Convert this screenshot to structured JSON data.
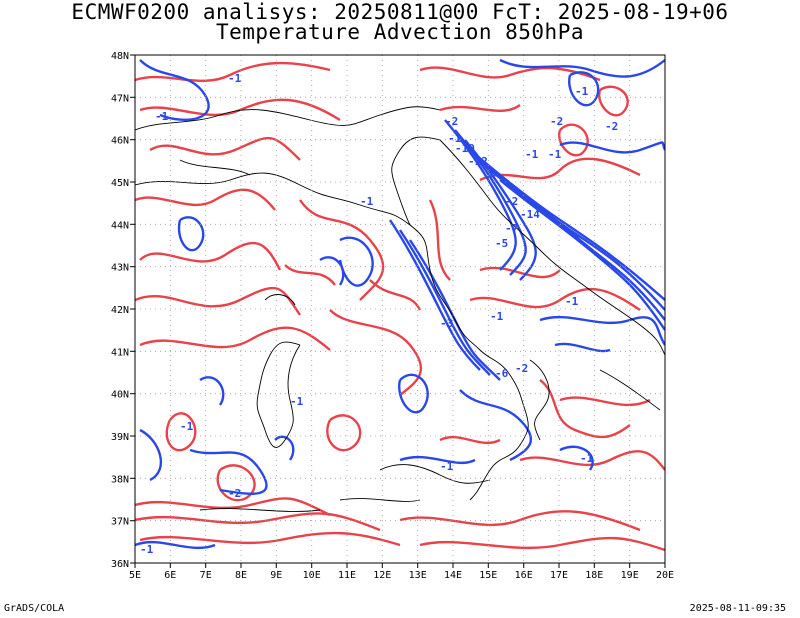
{
  "header": {
    "title_line1": "ECMWF0200 analisys: 20250811@00 FcT: 2025-08-19+06",
    "title_line2": "Temperature Advection 850hPa"
  },
  "map": {
    "lon_labels": [
      "5E",
      "6E",
      "7E",
      "8E",
      "9E",
      "10E",
      "11E",
      "12E",
      "13E",
      "14E",
      "15E",
      "16E",
      "17E",
      "18E",
      "19E",
      "20E"
    ],
    "lat_labels": [
      "48N",
      "47N",
      "46N",
      "45N",
      "44N",
      "43N",
      "42N",
      "41N",
      "40N",
      "39N",
      "38N",
      "37N",
      "36N"
    ],
    "lon_range": [
      5,
      20
    ],
    "lat_range": [
      36,
      48
    ],
    "grid": "dotted",
    "colors": {
      "positive": "#e8434b",
      "negative": "#2a48e8",
      "coast": "#000000"
    },
    "contour_labels": [
      "-1",
      "-1",
      "-1",
      "-2",
      "-1",
      "-10",
      "-12",
      "-1",
      "-2",
      "-14",
      "-7",
      "-5",
      "-1",
      "-3",
      "-6",
      "-2",
      "-1",
      "-2",
      "-1",
      "-2",
      "-1",
      "-1",
      "-1",
      "-2",
      "-1",
      "-1",
      "-1"
    ]
  },
  "footer": {
    "left": "GrADS/COLA",
    "right": "2025-08-11-09:35"
  }
}
